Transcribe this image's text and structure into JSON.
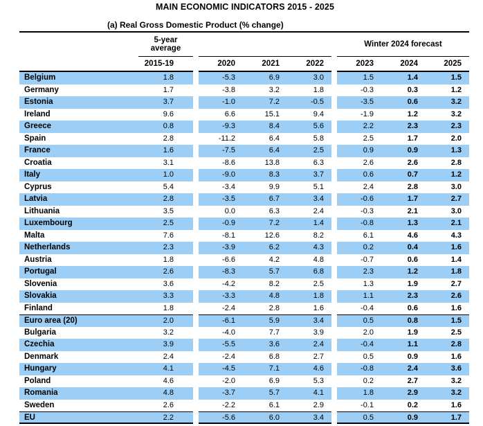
{
  "page": {
    "title": "MAIN ECONOMIC INDICATORS 2015 - 2025",
    "subtitle": "(a) Real Gross Domestic Product (% change)"
  },
  "table": {
    "group_headers": {
      "five_year_avg": "5-year average",
      "winter_forecast": "Winter 2024 forecast"
    },
    "year_columns": [
      "2015-19",
      "2020",
      "2021",
      "2022",
      "2023",
      "2024",
      "2025"
    ],
    "bold_value_columns": [
      "2024",
      "2025"
    ],
    "rows": [
      {
        "country": "Belgium",
        "values": [
          "1.8",
          "-5.3",
          "6.9",
          "3.0",
          "1.5",
          "1.4",
          "1.5"
        ]
      },
      {
        "country": "Germany",
        "values": [
          "1.7",
          "-3.8",
          "3.2",
          "1.8",
          "-0.3",
          "0.3",
          "1.2"
        ]
      },
      {
        "country": "Estonia",
        "values": [
          "3.7",
          "-1.0",
          "7.2",
          "-0.5",
          "-3.5",
          "0.6",
          "3.2"
        ]
      },
      {
        "country": "Ireland",
        "values": [
          "9.6",
          "6.6",
          "15.1",
          "9.4",
          "-1.9",
          "1.2",
          "3.2"
        ]
      },
      {
        "country": "Greece",
        "values": [
          "0.8",
          "-9.3",
          "8.4",
          "5.6",
          "2.2",
          "2.3",
          "2.3"
        ]
      },
      {
        "country": "Spain",
        "values": [
          "2.8",
          "-11.2",
          "6.4",
          "5.8",
          "2.5",
          "1.7",
          "2.0"
        ]
      },
      {
        "country": "France",
        "values": [
          "1.6",
          "-7.5",
          "6.4",
          "2.5",
          "0.9",
          "0.9",
          "1.3"
        ]
      },
      {
        "country": "Croatia",
        "values": [
          "3.1",
          "-8.6",
          "13.8",
          "6.3",
          "2.6",
          "2.6",
          "2.8"
        ]
      },
      {
        "country": "Italy",
        "values": [
          "1.0",
          "-9.0",
          "8.3",
          "3.7",
          "0.6",
          "0.7",
          "1.2"
        ]
      },
      {
        "country": "Cyprus",
        "values": [
          "5.4",
          "-3.4",
          "9.9",
          "5.1",
          "2.4",
          "2.8",
          "3.0"
        ]
      },
      {
        "country": "Latvia",
        "values": [
          "2.8",
          "-3.5",
          "6.7",
          "3.4",
          "-0.6",
          "1.7",
          "2.7"
        ]
      },
      {
        "country": "Lithuania",
        "values": [
          "3.5",
          "0.0",
          "6.3",
          "2.4",
          "-0.3",
          "2.1",
          "3.0"
        ]
      },
      {
        "country": "Luxembourg",
        "values": [
          "2.5",
          "-0.9",
          "7.2",
          "1.4",
          "-0.8",
          "1.3",
          "2.1"
        ]
      },
      {
        "country": "Malta",
        "values": [
          "7.6",
          "-8.1",
          "12.6",
          "8.2",
          "6.1",
          "4.6",
          "4.3"
        ]
      },
      {
        "country": "Netherlands",
        "values": [
          "2.3",
          "-3.9",
          "6.2",
          "4.3",
          "0.2",
          "0.4",
          "1.6"
        ]
      },
      {
        "country": "Austria",
        "values": [
          "1.8",
          "-6.6",
          "4.2",
          "4.8",
          "-0.7",
          "0.6",
          "1.4"
        ]
      },
      {
        "country": "Portugal",
        "values": [
          "2.6",
          "-8.3",
          "5.7",
          "6.8",
          "2.3",
          "1.2",
          "1.8"
        ]
      },
      {
        "country": "Slovenia",
        "values": [
          "3.6",
          "-4.2",
          "8.2",
          "2.5",
          "1.3",
          "1.9",
          "2.7"
        ]
      },
      {
        "country": "Slovakia",
        "values": [
          "3.3",
          "-3.3",
          "4.8",
          "1.8",
          "1.1",
          "2.3",
          "2.6"
        ]
      },
      {
        "country": "Finland",
        "values": [
          "1.8",
          "-2.4",
          "2.8",
          "1.6",
          "-0.4",
          "0.6",
          "1.6"
        ]
      },
      {
        "country": "Euro area (20)",
        "values": [
          "2.0",
          "-6.1",
          "5.9",
          "3.4",
          "0.5",
          "0.8",
          "1.5"
        ],
        "rule_above": true
      },
      {
        "country": "Bulgaria",
        "values": [
          "3.2",
          "-4.0",
          "7.7",
          "3.9",
          "2.0",
          "1.9",
          "2.5"
        ]
      },
      {
        "country": "Czechia",
        "values": [
          "3.9",
          "-5.5",
          "3.6",
          "2.4",
          "-0.4",
          "1.1",
          "2.8"
        ]
      },
      {
        "country": "Denmark",
        "values": [
          "2.4",
          "-2.4",
          "6.8",
          "2.7",
          "0.5",
          "0.9",
          "1.6"
        ]
      },
      {
        "country": "Hungary",
        "values": [
          "4.1",
          "-4.5",
          "7.1",
          "4.6",
          "-0.8",
          "2.4",
          "3.6"
        ]
      },
      {
        "country": "Poland",
        "values": [
          "4.6",
          "-2.0",
          "6.9",
          "5.3",
          "0.2",
          "2.7",
          "3.2"
        ]
      },
      {
        "country": "Romania",
        "values": [
          "4.8",
          "-3.7",
          "5.7",
          "4.1",
          "1.8",
          "2.9",
          "3.2"
        ]
      },
      {
        "country": "Sweden",
        "values": [
          "2.6",
          "-2.2",
          "6.1",
          "2.9",
          "-0.1",
          "0.2",
          "1.6"
        ]
      },
      {
        "country": "EU",
        "values": [
          "2.2",
          "-5.6",
          "6.0",
          "3.4",
          "0.5",
          "0.9",
          "1.7"
        ],
        "rule_above": true,
        "rule_below": true
      }
    ]
  },
  "colors": {
    "stripe_blue": "#9DCFF6",
    "text": "#000000"
  }
}
